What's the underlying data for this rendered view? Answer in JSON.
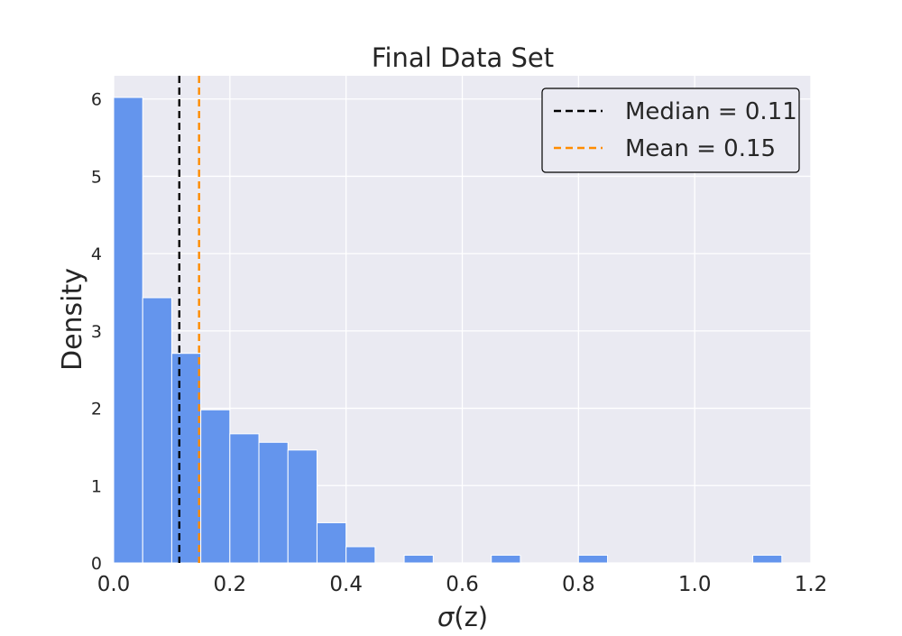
{
  "chart_data": {
    "type": "bar",
    "title": "Final Data Set",
    "xlabel_symbol": "σ",
    "xlabel_rest": "(z)",
    "ylabel": "Density",
    "xlim": [
      0.0,
      1.2
    ],
    "ylim": [
      0,
      6.3
    ],
    "xticks": [
      "0.0",
      "0.2",
      "0.4",
      "0.6",
      "0.8",
      "1.0",
      "1.2"
    ],
    "xtick_values": [
      0.0,
      0.2,
      0.4,
      0.6,
      0.8,
      1.0,
      1.2
    ],
    "yticks": [
      "0",
      "1",
      "2",
      "3",
      "4",
      "5",
      "6"
    ],
    "ytick_values": [
      0,
      1,
      2,
      3,
      4,
      5,
      6
    ],
    "grid": true,
    "bin_edges": [
      0.0,
      0.05,
      0.1,
      0.15,
      0.2,
      0.25,
      0.3,
      0.35,
      0.4,
      0.45,
      0.5,
      0.55,
      0.6,
      0.65,
      0.7,
      0.75,
      0.8,
      0.85,
      0.9,
      0.95,
      1.0,
      1.05,
      1.1,
      1.15
    ],
    "values": [
      6.02,
      3.43,
      2.71,
      1.98,
      1.67,
      1.56,
      1.46,
      0.52,
      0.21,
      0.0,
      0.1,
      0.0,
      0.0,
      0.1,
      0.0,
      0.0,
      0.1,
      0.0,
      0.0,
      0.0,
      0.0,
      0.0,
      0.1
    ],
    "bar_color": "#6495ed",
    "background_color": "#eaeaf2",
    "lines": [
      {
        "label": "Median = 0.11",
        "x": 0.113,
        "color": "#000000",
        "style": "dashed"
      },
      {
        "label": "Mean = 0.15",
        "x": 0.147,
        "color": "#ff8c00",
        "style": "dashed"
      }
    ],
    "legend_position": "upper-right"
  }
}
